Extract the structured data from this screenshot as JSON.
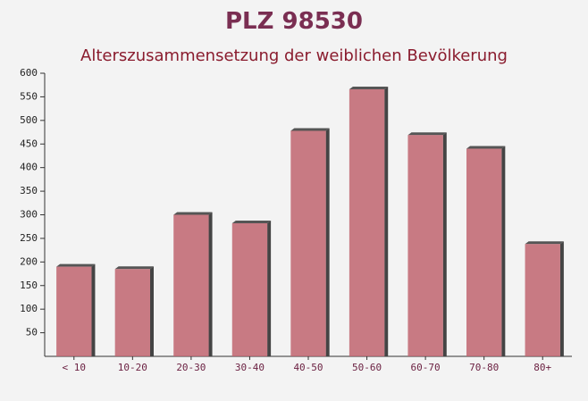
{
  "chart_data": {
    "type": "bar",
    "title": "PLZ 98530",
    "subtitle": "Alterszusammensetzung der weiblichen Bevölkerung",
    "categories": [
      "< 10",
      "10-20",
      "20-30",
      "30-40",
      "40-50",
      "50-60",
      "60-70",
      "70-80",
      "80+"
    ],
    "values": [
      190,
      185,
      300,
      282,
      478,
      566,
      469,
      440,
      238
    ],
    "color": "#c0646e",
    "ylim": [
      0,
      600
    ],
    "yticks": [
      50,
      100,
      150,
      200,
      250,
      300,
      350,
      400,
      450,
      500,
      550,
      600
    ]
  }
}
